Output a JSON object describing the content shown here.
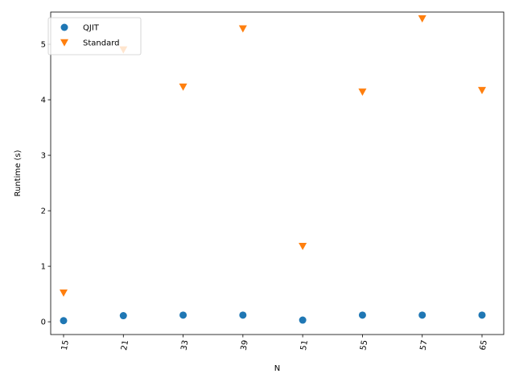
{
  "chart_data": {
    "type": "scatter",
    "xlabel": "N",
    "ylabel": "Runtime (s)",
    "categories": [
      "15",
      "21",
      "33",
      "39",
      "51",
      "55",
      "57",
      "65"
    ],
    "ylim": [
      -0.23,
      5.58
    ],
    "yticks": [
      0,
      1,
      2,
      3,
      4,
      5
    ],
    "legend_position": "top-left",
    "grid": false,
    "series": [
      {
        "name": "QJIT",
        "marker": "circle",
        "color": "#1f77b4",
        "values": [
          0.02,
          0.11,
          0.12,
          0.12,
          0.03,
          0.12,
          0.12,
          0.12
        ]
      },
      {
        "name": "Standard",
        "marker": "triangle-down",
        "color": "#ff7f0e",
        "values": [
          0.52,
          4.9,
          4.23,
          5.28,
          1.36,
          4.14,
          5.46,
          4.17
        ]
      }
    ]
  }
}
